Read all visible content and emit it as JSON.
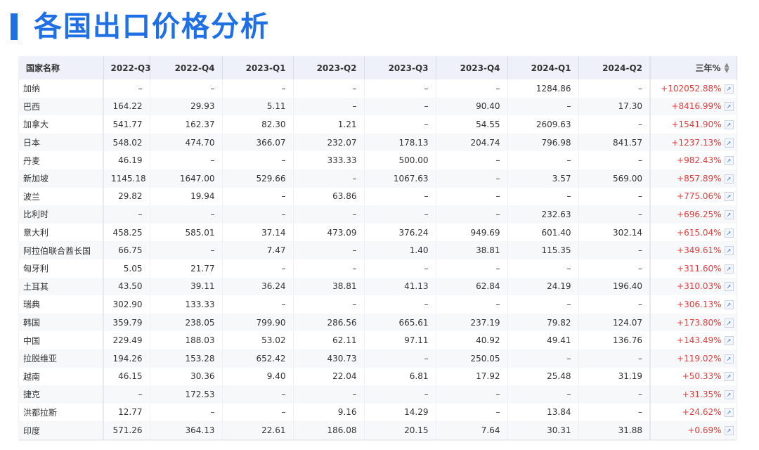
{
  "title": "各国出口价格分析",
  "colors": {
    "accent": "#1f6fe5",
    "positive": "#e23c3c",
    "header_bg": "#eef1f9"
  },
  "table": {
    "headers": [
      "国家名称",
      "2022-Q3",
      "2022-Q4",
      "2023-Q1",
      "2023-Q2",
      "2023-Q3",
      "2023-Q4",
      "2024-Q1",
      "2024-Q2",
      "三年%"
    ],
    "sort_icon": "sort-updown-icon",
    "trend_icon": "trend-chart-icon",
    "rows": [
      [
        "加纳",
        "–",
        "–",
        "–",
        "–",
        "–",
        "–",
        "1284.86",
        "–",
        "+102052.88%"
      ],
      [
        "巴西",
        "164.22",
        "29.93",
        "5.11",
        "–",
        "–",
        "90.40",
        "–",
        "17.30",
        "+8416.99%"
      ],
      [
        "加拿大",
        "541.77",
        "162.37",
        "82.30",
        "1.21",
        "–",
        "54.55",
        "2609.63",
        "–",
        "+1541.90%"
      ],
      [
        "日本",
        "548.02",
        "474.70",
        "366.07",
        "232.07",
        "178.13",
        "204.74",
        "796.98",
        "841.57",
        "+1237.13%"
      ],
      [
        "丹麦",
        "46.19",
        "–",
        "–",
        "333.33",
        "500.00",
        "–",
        "–",
        "–",
        "+982.43%"
      ],
      [
        "新加坡",
        "1145.18",
        "1647.00",
        "529.66",
        "–",
        "1067.63",
        "–",
        "3.57",
        "569.00",
        "+857.89%"
      ],
      [
        "波兰",
        "29.82",
        "19.94",
        "–",
        "63.86",
        "–",
        "–",
        "–",
        "–",
        "+775.06%"
      ],
      [
        "比利时",
        "–",
        "–",
        "–",
        "–",
        "–",
        "–",
        "232.63",
        "–",
        "+696.25%"
      ],
      [
        "意大利",
        "458.25",
        "585.01",
        "37.14",
        "473.09",
        "376.24",
        "949.69",
        "601.40",
        "302.14",
        "+615.04%"
      ],
      [
        "阿拉伯联合酋长国",
        "66.75",
        "–",
        "7.47",
        "–",
        "1.40",
        "38.81",
        "115.35",
        "–",
        "+349.61%"
      ],
      [
        "匈牙利",
        "5.05",
        "21.77",
        "–",
        "–",
        "–",
        "–",
        "–",
        "–",
        "+311.60%"
      ],
      [
        "土耳其",
        "43.50",
        "39.11",
        "36.24",
        "38.81",
        "41.13",
        "62.84",
        "24.19",
        "196.40",
        "+310.03%"
      ],
      [
        "瑞典",
        "302.90",
        "133.33",
        "–",
        "–",
        "–",
        "–",
        "–",
        "–",
        "+306.13%"
      ],
      [
        "韩国",
        "359.79",
        "238.05",
        "799.90",
        "286.56",
        "665.61",
        "237.19",
        "79.82",
        "124.07",
        "+173.80%"
      ],
      [
        "中国",
        "229.49",
        "188.03",
        "53.02",
        "62.11",
        "97.11",
        "40.92",
        "49.41",
        "136.76",
        "+143.49%"
      ],
      [
        "拉脱维亚",
        "194.26",
        "153.28",
        "652.42",
        "430.73",
        "–",
        "250.05",
        "–",
        "–",
        "+119.02%"
      ],
      [
        "越南",
        "46.15",
        "30.36",
        "9.40",
        "22.04",
        "6.81",
        "17.92",
        "25.48",
        "31.19",
        "+50.33%"
      ],
      [
        "捷克",
        "–",
        "172.53",
        "–",
        "–",
        "–",
        "–",
        "–",
        "–",
        "+31.35%"
      ],
      [
        "洪都拉斯",
        "12.77",
        "–",
        "–",
        "9.16",
        "14.29",
        "–",
        "13.84",
        "–",
        "+24.62%"
      ],
      [
        "印度",
        "571.26",
        "364.13",
        "22.61",
        "186.08",
        "20.15",
        "7.64",
        "30.31",
        "31.88",
        "+0.69%"
      ]
    ]
  }
}
